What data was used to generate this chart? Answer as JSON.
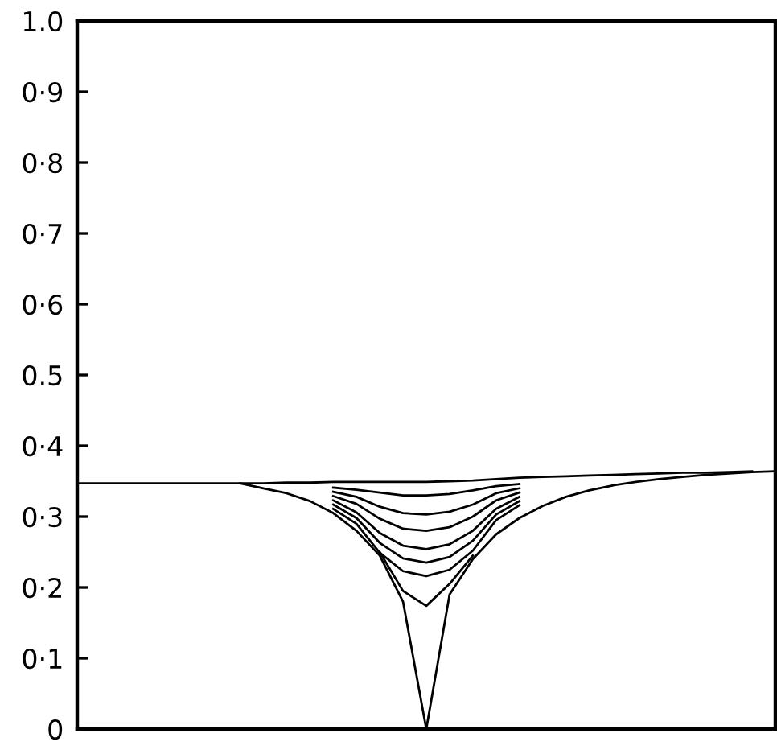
{
  "chart_data": {
    "type": "line",
    "categories": [
      null,
      null,
      null,
      null,
      null,
      null,
      null,
      null,
      null,
      null,
      null,
      null,
      null,
      null,
      null,
      null,
      null,
      null,
      null,
      null,
      null,
      null,
      null,
      null,
      null,
      null,
      null,
      null,
      null,
      null,
      null
    ],
    "ylim": [
      0,
      1.0
    ],
    "yticks": [
      0,
      {
        "value": 0.1,
        "label": "0·1"
      },
      {
        "value": 0.2,
        "label": "0·2"
      },
      {
        "value": 0.3,
        "label": "0·3"
      },
      {
        "value": 0.4,
        "label": "0·4"
      },
      {
        "value": 0.5,
        "label": "0.5"
      },
      {
        "value": 0.6,
        "label": "0·6"
      },
      {
        "value": 0.7,
        "label": "0·7"
      },
      {
        "value": 0.8,
        "label": "0·8"
      },
      {
        "value": 0.9,
        "label": "0·9"
      },
      {
        "value": 1.0,
        "label": "1.0"
      }
    ],
    "tick_labels": "y",
    "grid": false,
    "legend": false,
    "marker": "none",
    "line_style": "solid",
    "series": [
      {
        "color": "#000000",
        "values": [
          0.347,
          0.347,
          0.347,
          0.347,
          0.347,
          0.347,
          0.347,
          0.347,
          0.34,
          0.333,
          0.322,
          0.305,
          0.28,
          0.245,
          0.18,
          0.0,
          0.19,
          0.24,
          0.275,
          0.298,
          0.315,
          0.328,
          0.337,
          0.344,
          0.349,
          0.353,
          0.356,
          0.359,
          0.361,
          0.363,
          0.364
        ]
      },
      {
        "color": "#000000",
        "values": [
          null,
          null,
          null,
          null,
          null,
          null,
          null,
          0.347,
          0.347,
          0.348,
          0.348,
          0.349,
          0.349,
          0.349,
          0.349,
          0.349,
          0.35,
          0.351,
          0.353,
          0.355,
          0.356,
          0.357,
          0.358,
          0.359,
          0.36,
          0.361,
          0.362,
          0.362,
          0.363,
          0.364,
          null
        ]
      },
      {
        "color": "#000000",
        "values": [
          null,
          null,
          null,
          null,
          null,
          null,
          null,
          null,
          null,
          null,
          null,
          0.341,
          0.338,
          0.334,
          0.33,
          0.33,
          0.332,
          0.337,
          0.343,
          0.346,
          null,
          null,
          null,
          null,
          null,
          null,
          null,
          null,
          null,
          null,
          null
        ]
      },
      {
        "color": "#000000",
        "values": [
          null,
          null,
          null,
          null,
          null,
          null,
          null,
          null,
          null,
          null,
          null,
          0.335,
          0.328,
          0.314,
          0.305,
          0.303,
          0.307,
          0.317,
          0.333,
          0.34,
          null,
          null,
          null,
          null,
          null,
          null,
          null,
          null,
          null,
          null,
          null
        ]
      },
      {
        "color": "#000000",
        "values": [
          null,
          null,
          null,
          null,
          null,
          null,
          null,
          null,
          null,
          null,
          null,
          0.329,
          0.318,
          0.297,
          0.283,
          0.28,
          0.285,
          0.3,
          0.323,
          0.334,
          null,
          null,
          null,
          null,
          null,
          null,
          null,
          null,
          null,
          null,
          null
        ]
      },
      {
        "color": "#000000",
        "values": [
          null,
          null,
          null,
          null,
          null,
          null,
          null,
          null,
          null,
          null,
          null,
          0.323,
          0.306,
          0.277,
          0.259,
          0.254,
          0.261,
          0.28,
          0.311,
          0.328,
          null,
          null,
          null,
          null,
          null,
          null,
          null,
          null,
          null,
          null,
          null
        ]
      },
      {
        "color": "#000000",
        "values": [
          null,
          null,
          null,
          null,
          null,
          null,
          null,
          null,
          null,
          null,
          null,
          0.317,
          0.298,
          0.263,
          0.241,
          0.235,
          0.243,
          0.266,
          0.303,
          0.322,
          null,
          null,
          null,
          null,
          null,
          null,
          null,
          null,
          null,
          null,
          null
        ]
      },
      {
        "color": "#000000",
        "values": [
          null,
          null,
          null,
          null,
          null,
          null,
          null,
          null,
          null,
          null,
          null,
          0.311,
          0.29,
          0.249,
          0.223,
          0.216,
          0.225,
          0.252,
          0.295,
          0.316,
          null,
          null,
          null,
          null,
          null,
          null,
          null,
          null,
          null,
          null,
          null
        ]
      },
      {
        "color": "#000000",
        "values": [
          null,
          null,
          null,
          null,
          null,
          null,
          null,
          null,
          null,
          null,
          null,
          null,
          null,
          0.25,
          0.195,
          0.174,
          0.205,
          0.245,
          null,
          null,
          null,
          null,
          null,
          null,
          null,
          null,
          null,
          null,
          null,
          null,
          null
        ]
      }
    ]
  }
}
